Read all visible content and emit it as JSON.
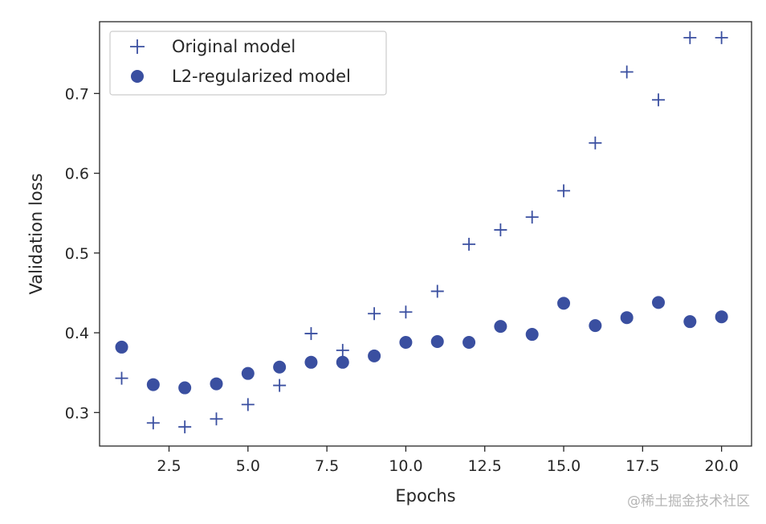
{
  "chart_data": {
    "type": "scatter",
    "xlabel": "Epochs",
    "ylabel": "Validation loss",
    "xlim": [
      0.3,
      20.95
    ],
    "ylim": [
      0.258,
      0.79
    ],
    "xticks": [
      "2.5",
      "5.0",
      "7.5",
      "10.0",
      "12.5",
      "15.0",
      "17.5",
      "20.0"
    ],
    "yticks": [
      "0.3",
      "0.4",
      "0.5",
      "0.6",
      "0.7"
    ],
    "grid": false,
    "legend_position": "top-left",
    "series": [
      {
        "name": "Original model",
        "marker": "plus",
        "color": "#3a4fa0",
        "x": [
          1,
          2,
          3,
          4,
          5,
          6,
          7,
          8,
          9,
          10,
          11,
          12,
          13,
          14,
          15,
          16,
          17,
          18,
          19,
          20
        ],
        "y": [
          0.343,
          0.287,
          0.282,
          0.292,
          0.31,
          0.334,
          0.399,
          0.378,
          0.424,
          0.426,
          0.452,
          0.511,
          0.529,
          0.545,
          0.578,
          0.638,
          0.727,
          0.692,
          0.77,
          0.77
        ]
      },
      {
        "name": "L2-regularized model",
        "marker": "circle",
        "color": "#3a4fa0",
        "x": [
          1,
          2,
          3,
          4,
          5,
          6,
          7,
          8,
          9,
          10,
          11,
          12,
          13,
          14,
          15,
          16,
          17,
          18,
          19,
          20
        ],
        "y": [
          0.382,
          0.335,
          0.331,
          0.336,
          0.349,
          0.357,
          0.363,
          0.363,
          0.371,
          0.388,
          0.389,
          0.388,
          0.408,
          0.398,
          0.437,
          0.409,
          0.419,
          0.438,
          0.414,
          0.42
        ]
      }
    ]
  },
  "watermark": "@稀土掘金技术社区"
}
